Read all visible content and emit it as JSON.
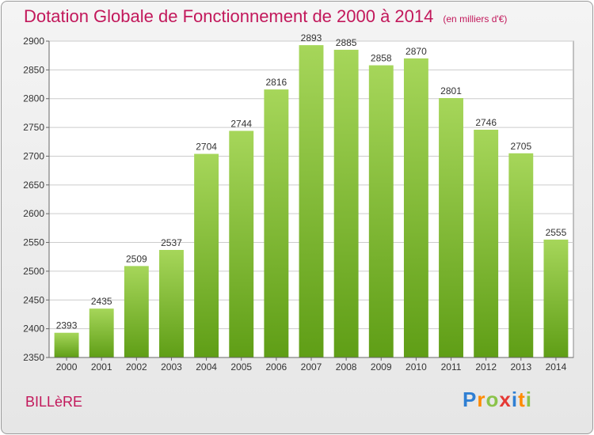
{
  "chart_data": {
    "type": "bar",
    "title": "Dotation Globale de Fonctionnement de 2000 à 2014",
    "subtitle": "(en milliers d'€)",
    "categories": [
      "2000",
      "2001",
      "2002",
      "2003",
      "2004",
      "2005",
      "2006",
      "2007",
      "2008",
      "2009",
      "2010",
      "2011",
      "2012",
      "2013",
      "2014"
    ],
    "values": [
      2393,
      2435,
      2509,
      2537,
      2704,
      2744,
      2816,
      2893,
      2885,
      2858,
      2870,
      2801,
      2746,
      2705,
      2555
    ],
    "ylim": [
      2350,
      2900
    ],
    "yticks": [
      2350,
      2400,
      2450,
      2500,
      2550,
      2600,
      2650,
      2700,
      2750,
      2800,
      2850,
      2900
    ],
    "grid": true,
    "colors": {
      "bar_top": "#a6d65a",
      "bar_bottom": "#5f9e16",
      "title": "#c2185b"
    }
  },
  "footer": {
    "commune": "BILLèRE",
    "logo_letters": [
      {
        "ch": "P",
        "color": "#2f7fd3"
      },
      {
        "ch": "r",
        "color": "#ff8a00"
      },
      {
        "ch": "o",
        "color": "#8bc34a"
      },
      {
        "ch": "x",
        "color": "#e53935"
      },
      {
        "ch": "i",
        "color": "#2f7fd3"
      },
      {
        "ch": "t",
        "color": "#ff8a00"
      },
      {
        "ch": "i",
        "color": "#8bc34a"
      }
    ]
  }
}
